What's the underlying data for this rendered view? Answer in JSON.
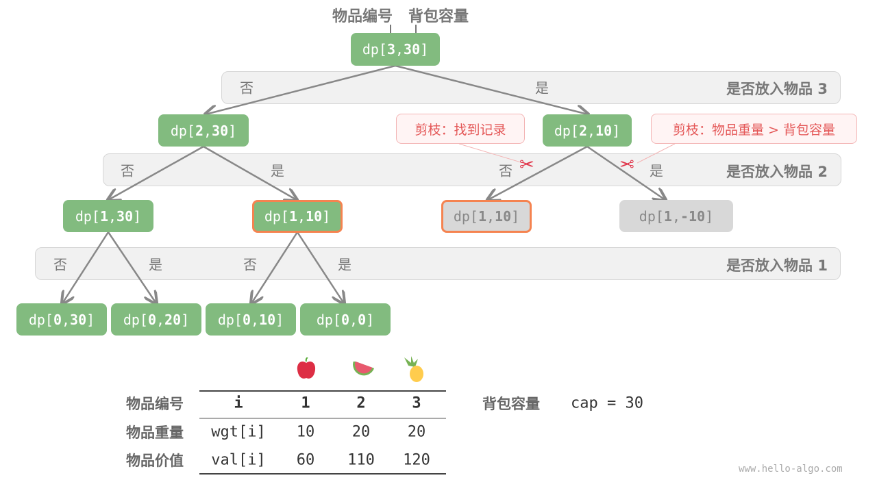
{
  "header": {
    "item_label": "物品编号",
    "capacity_label": "背包容量"
  },
  "bands": [
    {
      "label": "是否放入物品 3"
    },
    {
      "label": "是否放入物品 2"
    },
    {
      "label": "是否放入物品 1"
    }
  ],
  "choice": {
    "no": "否",
    "yes": "是"
  },
  "nodes": {
    "root": {
      "prefix": "dp[",
      "i": "3",
      "sep": ",",
      "c": "30",
      "suffix": "]"
    },
    "n2_30": {
      "prefix": "dp[",
      "i": "2",
      "sep": ",",
      "c": "30",
      "suffix": "]"
    },
    "n2_10": {
      "prefix": "dp[",
      "i": "2",
      "sep": ",",
      "c": "10",
      "suffix": "]"
    },
    "n1_30": {
      "prefix": "dp[",
      "i": "1",
      "sep": ",",
      "c": "30",
      "suffix": "]"
    },
    "n1_10": {
      "prefix": "dp[",
      "i": "1",
      "sep": ",",
      "c": "10",
      "suffix": "]"
    },
    "n1_10_pruned": {
      "prefix": "dp[",
      "i": "1",
      "sep": ",",
      "c": "10",
      "suffix": "]"
    },
    "n1_m10": {
      "prefix": "dp[",
      "i": "1",
      "sep": ",",
      "c": "-10",
      "suffix": "]"
    },
    "n0_30": {
      "prefix": "dp[",
      "i": "0",
      "sep": ",",
      "c": "30",
      "suffix": "]"
    },
    "n0_20": {
      "prefix": "dp[",
      "i": "0",
      "sep": ",",
      "c": "20",
      "suffix": "]"
    },
    "n0_10": {
      "prefix": "dp[",
      "i": "0",
      "sep": ",",
      "c": "10",
      "suffix": "]"
    },
    "n0_0": {
      "prefix": "dp[",
      "i": "0",
      "sep": ",",
      "c": "0",
      "suffix": "]"
    }
  },
  "callouts": {
    "memo": "剪枝：找到记录",
    "overweight": "剪枝：物品重量 > 背包容量"
  },
  "table": {
    "row_labels": [
      "物品编号",
      "物品重量",
      "物品价值"
    ],
    "header": [
      "i",
      "1",
      "2",
      "3"
    ],
    "wgt": [
      "wgt[i]",
      "10",
      "20",
      "20"
    ],
    "val": [
      "val[i]",
      "60",
      "110",
      "120"
    ],
    "fruits": [
      "apple",
      "watermelon",
      "pineapple"
    ]
  },
  "capacity": {
    "label": "背包容量",
    "value": "cap = 30"
  },
  "watermark": "www.hello-algo.com",
  "colors": {
    "node": "#82bb7f",
    "pruned_node": "#d8d8d8",
    "highlight_border": "#f58350",
    "callout_text": "#e45757"
  }
}
